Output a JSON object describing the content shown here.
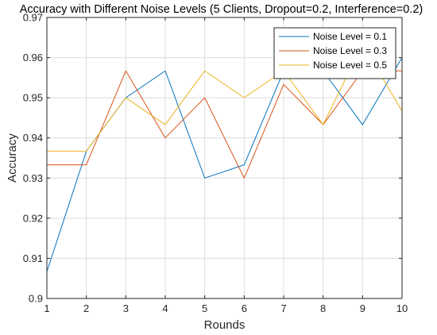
{
  "chart_data": {
    "type": "line",
    "title": "Accuracy with Different Noise Levels (5 Clients, Dropout=0.2, Interference=0.2)",
    "xlabel": "Rounds",
    "ylabel": "Accuracy",
    "x": [
      1,
      2,
      3,
      4,
      5,
      6,
      7,
      8,
      9,
      10
    ],
    "xlim": [
      1,
      10
    ],
    "ylim": [
      0.9,
      0.97
    ],
    "xticks": [
      "1",
      "2",
      "3",
      "4",
      "5",
      "6",
      "7",
      "8",
      "9",
      "10"
    ],
    "yticks": [
      "0.9",
      "0.91",
      "0.92",
      "0.93",
      "0.94",
      "0.95",
      "0.96",
      "0.97"
    ],
    "ytick_values": [
      0.9,
      0.91,
      0.92,
      0.93,
      0.94,
      0.95,
      0.96,
      0.97
    ],
    "grid": true,
    "legend_position": "top-right",
    "series": [
      {
        "name": "Noise Level = 0.1",
        "color": "#0072BD",
        "values": [
          0.9067,
          0.9367,
          0.95,
          0.9567,
          0.93,
          0.9333,
          0.9567,
          0.9567,
          0.9433,
          0.96
        ]
      },
      {
        "name": "Noise Level = 0.3",
        "color": "#D95319",
        "values": [
          0.9333,
          0.9333,
          0.9567,
          0.94,
          0.95,
          0.93,
          0.9533,
          0.9433,
          0.9567,
          0.9567
        ]
      },
      {
        "name": "Noise Level = 0.5",
        "color": "#EDB120",
        "values": [
          0.9367,
          0.9367,
          0.95,
          0.9433,
          0.9567,
          0.95,
          0.9567,
          0.9433,
          0.9633,
          0.9467
        ]
      }
    ]
  }
}
